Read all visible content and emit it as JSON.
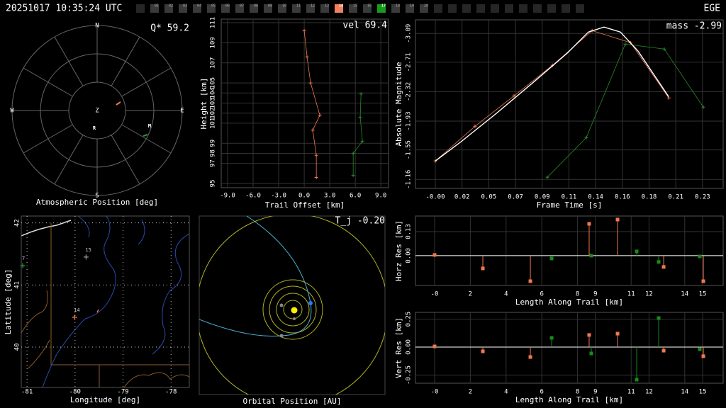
{
  "header": {
    "timestamp": "20251017 10:35:24 UTC",
    "station": "EGE",
    "frames": [
      {
        "label": "01",
        "color": "#3a3a3a"
      },
      {
        "label": "02",
        "color": "#3a3a3a"
      },
      {
        "label": "03",
        "color": "#3a3a3a"
      },
      {
        "label": "04",
        "color": "#3a3a3a"
      },
      {
        "label": "05",
        "color": "#3a3a3a"
      },
      {
        "label": "06",
        "color": "#3a3a3a"
      },
      {
        "label": "07",
        "color": "#3a3a3a"
      },
      {
        "label": "08",
        "color": "#3a3a3a"
      },
      {
        "label": "09",
        "color": "#3a3a3a"
      },
      {
        "label": "10",
        "color": "#3a3a3a"
      },
      {
        "label": "11",
        "color": "#3a3a3a"
      },
      {
        "label": "12",
        "color": "#3a3a3a"
      },
      {
        "label": "13",
        "color": "#3a3a3a"
      },
      {
        "label": "14",
        "color": "#f08060"
      },
      {
        "label": "15",
        "color": "#3a3a3a"
      },
      {
        "label": "16",
        "color": "#3a3a3a"
      },
      {
        "label": "17",
        "color": "#1a9a1a"
      },
      {
        "label": "18",
        "color": "#3a3a3a"
      },
      {
        "label": "19",
        "color": "#3a3a3a"
      },
      {
        "label": "20",
        "color": "#3a3a3a"
      }
    ]
  },
  "chart_data": [
    {
      "type": "polar",
      "title": "Atmospheric Position [deg]",
      "annotation": "Q* 59.2",
      "directions": [
        "N",
        "E",
        "S",
        "W",
        "Z"
      ],
      "markers": [
        "R",
        "M"
      ]
    },
    {
      "type": "line",
      "xlabel": "Trail Offset [km]",
      "ylabel": "Height [km]",
      "annotation": "vel 69.4",
      "xlim": [
        -9.75,
        9.9
      ],
      "xticks": [
        {
          "value": -9,
          "label": "-9.0"
        },
        {
          "value": -6,
          "label": "-6.0"
        },
        {
          "value": -3,
          "label": "-3.0"
        },
        {
          "value": 0,
          "label": "0.0"
        },
        {
          "value": 3,
          "label": "3.0"
        },
        {
          "value": 6,
          "label": "6.0"
        },
        {
          "value": 9,
          "label": "9.0"
        }
      ],
      "ylim": [
        94.58,
        111.35
      ],
      "yticks": [
        95,
        97,
        98,
        99,
        101,
        102,
        103,
        104,
        105,
        107,
        109,
        111
      ],
      "grid": true,
      "series": [
        {
          "color": "#f07850",
          "marker": "+",
          "x": [
            0,
            0.33,
            0.75,
            1.83,
            1,
            1.42,
            1.42
          ],
          "values": [
            110.2,
            107.6,
            105.0,
            101.8,
            100.3,
            97.8,
            95.6
          ]
        },
        {
          "color": "#2a8a2a",
          "marker": "+",
          "x": [
            6.67,
            6.58,
            6.83,
            5.75,
            5.75
          ],
          "values": [
            103.9,
            101.6,
            99.2,
            98.0,
            95.8
          ]
        }
      ]
    },
    {
      "type": "line",
      "xlabel": "Frame Time [s]",
      "ylabel": "Absolute Magnitude",
      "annotation": "mass -2.99",
      "xlim": [
        -0.017,
        0.2467
      ],
      "xticks": [
        {
          "value": 0,
          "label": "-0.00"
        },
        {
          "value": 0.0229,
          "label": "0.02"
        },
        {
          "value": 0.0458,
          "label": "0.05"
        },
        {
          "value": 0.0687,
          "label": "0.07"
        },
        {
          "value": 0.0916,
          "label": "0.09"
        },
        {
          "value": 0.1145,
          "label": "0.11"
        },
        {
          "value": 0.1374,
          "label": "0.14"
        },
        {
          "value": 0.1603,
          "label": "0.16"
        },
        {
          "value": 0.1832,
          "label": "0.18"
        },
        {
          "value": 0.2061,
          "label": "0.21"
        },
        {
          "value": 0.229,
          "label": "0.23"
        }
      ],
      "ylim": [
        -1.04,
        -3.27
      ],
      "yticks": [
        -3.09,
        -2.71,
        -2.32,
        -1.93,
        -1.55,
        -1.16
      ],
      "grid": true,
      "series": [
        {
          "color": "#2a8a2a",
          "marker": "+",
          "x": [
            0.096,
            0.1294,
            0.1628,
            0.1962,
            0.2297
          ],
          "values": [
            -1.187,
            -1.712,
            -2.949,
            -2.884,
            -2.115
          ]
        },
        {
          "color": "#f07850",
          "marker": "+",
          "x": [
            0,
            0.034,
            0.0675,
            0.1004,
            0.1344,
            0.1673,
            0.2001
          ],
          "values": [
            -1.403,
            -1.862,
            -2.265,
            -2.668,
            -3.127,
            -2.968,
            -2.237
          ]
        },
        {
          "color": "#ffffff",
          "x": [
            0,
            0.0219,
            0.0522,
            0.0826,
            0.113,
            0.1312,
            0.1446,
            0.1586,
            0.1738,
            0.1999
          ],
          "values": [
            -1.403,
            -1.656,
            -2.031,
            -2.425,
            -2.828,
            -3.109,
            -3.174,
            -3.109,
            -2.856,
            -2.256
          ]
        }
      ]
    },
    {
      "type": "map",
      "xlabel": "Longitude [deg]",
      "ylabel": "Latitude [deg]",
      "xlim": [
        -81.12,
        -77.62
      ],
      "xticks": [
        -81,
        -80,
        -79,
        -78
      ],
      "ylim": [
        39.35,
        42.11
      ],
      "yticks": [
        40,
        41,
        42
      ],
      "grid": true,
      "points": [
        {
          "label": "7",
          "color": "#2a9a2a",
          "x": -81.09,
          "y": 41.31
        },
        {
          "label": "15",
          "color": "#999999",
          "x": -79.77,
          "y": 41.45
        },
        {
          "label": "14",
          "color": "#f07850",
          "x": -80.01,
          "y": 40.48
        }
      ]
    },
    {
      "type": "orbit",
      "title": "Orbital Position [AU]",
      "annotation": "T_j -0.20"
    },
    {
      "type": "stem",
      "xlabel": "Length Along Trail [km]",
      "ylabel": "Horz Res [km]",
      "xlim": [
        -1.07,
        16.15
      ],
      "xticks": [
        {
          "value": 0,
          "label": "-0"
        },
        2,
        4,
        6,
        8,
        9,
        11,
        12,
        14,
        15
      ],
      "ylim": [
        -0.161,
        0.214
      ],
      "yticks": [
        {
          "value": 0,
          "label": "0.00"
        },
        0.13
      ],
      "grid": true,
      "series": [
        {
          "color": "#f07850",
          "x": [
            0,
            2.7,
            5.36,
            8.65,
            10.24,
            12.82,
            15.04
          ],
          "values": [
            0.004,
            -0.069,
            -0.138,
            0.172,
            0.195,
            -0.061,
            -0.138
          ]
        },
        {
          "color": "#1a8a1a",
          "x": [
            6.55,
            8.77,
            11.31,
            12.54,
            14.84
          ],
          "values": [
            -0.015,
            0,
            0.023,
            -0.034,
            -0.004
          ]
        }
      ]
    },
    {
      "type": "stem",
      "xlabel": "Length Along Trail [km]",
      "ylabel": "Vert Res [km]",
      "xlim": [
        -1.07,
        16.15
      ],
      "xticks": [
        {
          "value": 0,
          "label": "-0"
        },
        2,
        4,
        6,
        8,
        9,
        11,
        12,
        14,
        15
      ],
      "ylim": [
        -0.323,
        0.31
      ],
      "yticks": [
        -0.25,
        {
          "value": 0,
          "label": "0.00"
        },
        0.25
      ],
      "grid": true,
      "series": [
        {
          "color": "#f07850",
          "x": [
            0,
            2.7,
            5.36,
            8.65,
            10.24,
            12.82,
            15.04
          ],
          "values": [
            0.006,
            -0.038,
            -0.089,
            0.108,
            0.12,
            -0.032,
            -0.082
          ]
        },
        {
          "color": "#1a8a1a",
          "x": [
            6.55,
            8.77,
            11.31,
            12.54,
            14.84
          ],
          "values": [
            0.082,
            -0.057,
            -0.291,
            0.259,
            -0.019
          ]
        }
      ]
    }
  ]
}
